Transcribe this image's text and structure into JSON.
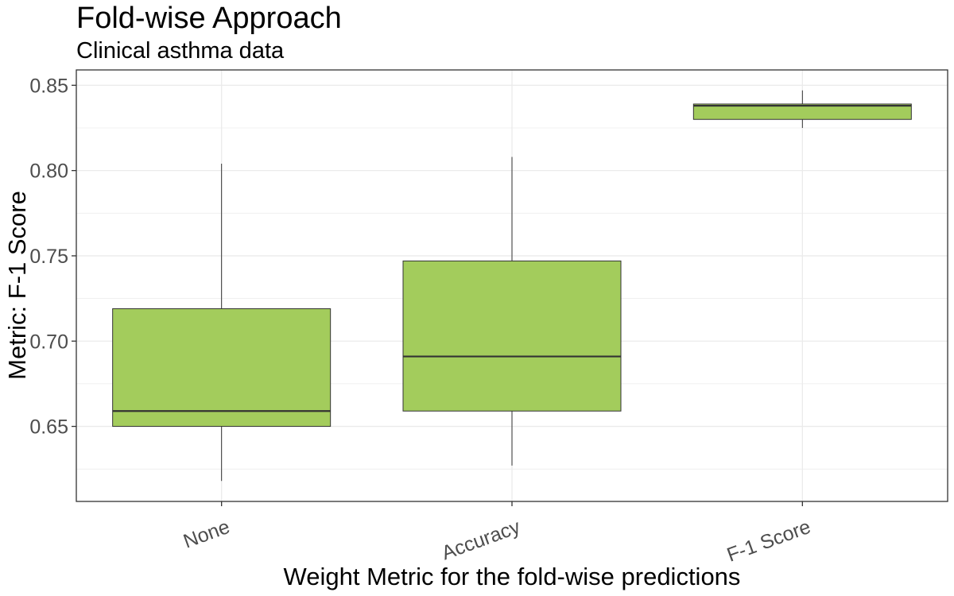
{
  "chart_data": {
    "type": "boxplot",
    "title": "Fold-wise Approach",
    "subtitle": "Clinical asthma data",
    "xlabel": "Weight Metric for the fold-wise predictions",
    "ylabel": "Metric: F-1 Score",
    "categories": [
      "None",
      "Accuracy",
      "F-1 Score"
    ],
    "boxes": [
      {
        "category": "None",
        "min": 0.618,
        "q1": 0.65,
        "median": 0.659,
        "q3": 0.719,
        "max": 0.804
      },
      {
        "category": "Accuracy",
        "min": 0.627,
        "q1": 0.659,
        "median": 0.691,
        "q3": 0.747,
        "max": 0.808
      },
      {
        "category": "F-1 Score",
        "min": 0.825,
        "q1": 0.83,
        "median": 0.838,
        "q3": 0.839,
        "max": 0.847
      }
    ],
    "yticks": [
      "0.65",
      "0.70",
      "0.75",
      "0.80",
      "0.85"
    ],
    "ylim": [
      0.606,
      0.859
    ],
    "grid": true,
    "box_fill": "#a3cc5c",
    "box_stroke": "#333333",
    "panel_border": "#333333",
    "grid_color": "#ebebeb"
  }
}
